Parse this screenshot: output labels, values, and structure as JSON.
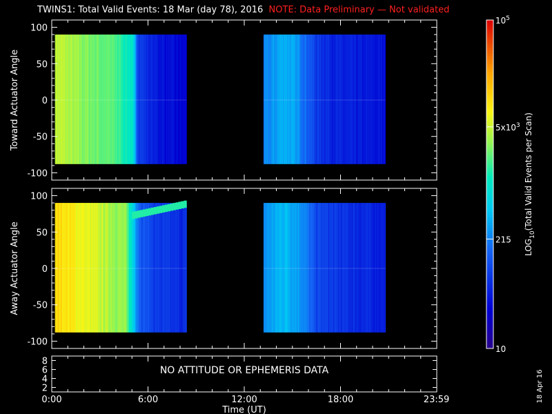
{
  "title": {
    "main": "TWINS1: Total Valid Events: 18 Mar (day  78), 2016",
    "note": "NOTE: Data Preliminary — Not validated",
    "note_color": "#ff2020"
  },
  "colorbar": {
    "label": "LOG10(Total Valid Events per Scan)",
    "label_base": "LOG",
    "label_sub": "10",
    "label_rest": "(Total Valid Events per Scan)",
    "ticks": [
      {
        "value": 100000,
        "text": "10",
        "sup": "5"
      },
      {
        "value": 5000,
        "text": "5x10",
        "sup": "3"
      },
      {
        "value": 215,
        "text": "215",
        "sup": ""
      },
      {
        "value": 10,
        "text": "10",
        "sup": ""
      }
    ],
    "range": [
      10,
      100000
    ],
    "scale": "log"
  },
  "date_stamp": "18 Apr 16",
  "chart_data": [
    {
      "type": "heatmap",
      "panel": "toward",
      "ylabel": "Toward Actuator Angle",
      "xlabel": "",
      "xlim_hours": [
        0,
        24
      ],
      "ylim": [
        -110,
        110
      ],
      "yticks": [
        -100,
        -50,
        0,
        50,
        100
      ],
      "data_ranges_hours": [
        [
          0.2,
          8.4
        ],
        [
          13.2,
          20.8
        ]
      ],
      "angle_range": [
        -88,
        90
      ],
      "profile": [
        {
          "t": 0.2,
          "v": 5000
        },
        {
          "t": 2.0,
          "v": 3000
        },
        {
          "t": 4.0,
          "v": 2000
        },
        {
          "t": 5.0,
          "v": 1000
        },
        {
          "t": 5.4,
          "v": 100
        },
        {
          "t": 6.0,
          "v": 60
        },
        {
          "t": 7.0,
          "v": 40
        },
        {
          "t": 8.2,
          "v": 30
        },
        {
          "t": 13.2,
          "v": 200
        },
        {
          "t": 14.5,
          "v": 400
        },
        {
          "t": 15.5,
          "v": 250
        },
        {
          "t": 16.5,
          "v": 80
        },
        {
          "t": 18.0,
          "v": 50
        },
        {
          "t": 20.8,
          "v": 40
        }
      ],
      "features": []
    },
    {
      "type": "heatmap",
      "panel": "away",
      "ylabel": "Away Actuator Angle",
      "xlabel": "",
      "xlim_hours": [
        0,
        24
      ],
      "ylim": [
        -110,
        110
      ],
      "yticks": [
        -100,
        -50,
        0,
        50,
        100
      ],
      "data_ranges_hours": [
        [
          0.2,
          8.4
        ],
        [
          13.2,
          20.8
        ]
      ],
      "angle_range": [
        -88,
        90
      ],
      "profile": [
        {
          "t": 0.2,
          "v": 12000
        },
        {
          "t": 1.5,
          "v": 8000
        },
        {
          "t": 3.0,
          "v": 5000
        },
        {
          "t": 4.6,
          "v": 3000
        },
        {
          "t": 5.0,
          "v": 800
        },
        {
          "t": 5.5,
          "v": 150
        },
        {
          "t": 6.5,
          "v": 80
        },
        {
          "t": 8.2,
          "v": 60
        },
        {
          "t": 13.2,
          "v": 250
        },
        {
          "t": 14.5,
          "v": 450
        },
        {
          "t": 15.5,
          "v": 300
        },
        {
          "t": 16.5,
          "v": 100
        },
        {
          "t": 18.0,
          "v": 70
        },
        {
          "t": 20.8,
          "v": 50
        }
      ],
      "features": [
        {
          "kind": "band",
          "t_start": 5.0,
          "t_end": 8.4,
          "angle_start": 72,
          "angle_end": 88,
          "value": 1500
        }
      ]
    },
    {
      "type": "line",
      "panel": "attitude",
      "xlabel": "Time (UT)",
      "xlim_hours": [
        0,
        24
      ],
      "xtick_hours": [
        0,
        6,
        12,
        18,
        23.98
      ],
      "xtick_labels": [
        "0:00",
        "6:00",
        "12:00",
        "18:00",
        "23:59"
      ],
      "yticks": [
        2,
        4,
        6,
        8
      ],
      "ylim": [
        1,
        9
      ],
      "message": "NO ATTITUDE OR EPHEMERIS DATA"
    }
  ]
}
